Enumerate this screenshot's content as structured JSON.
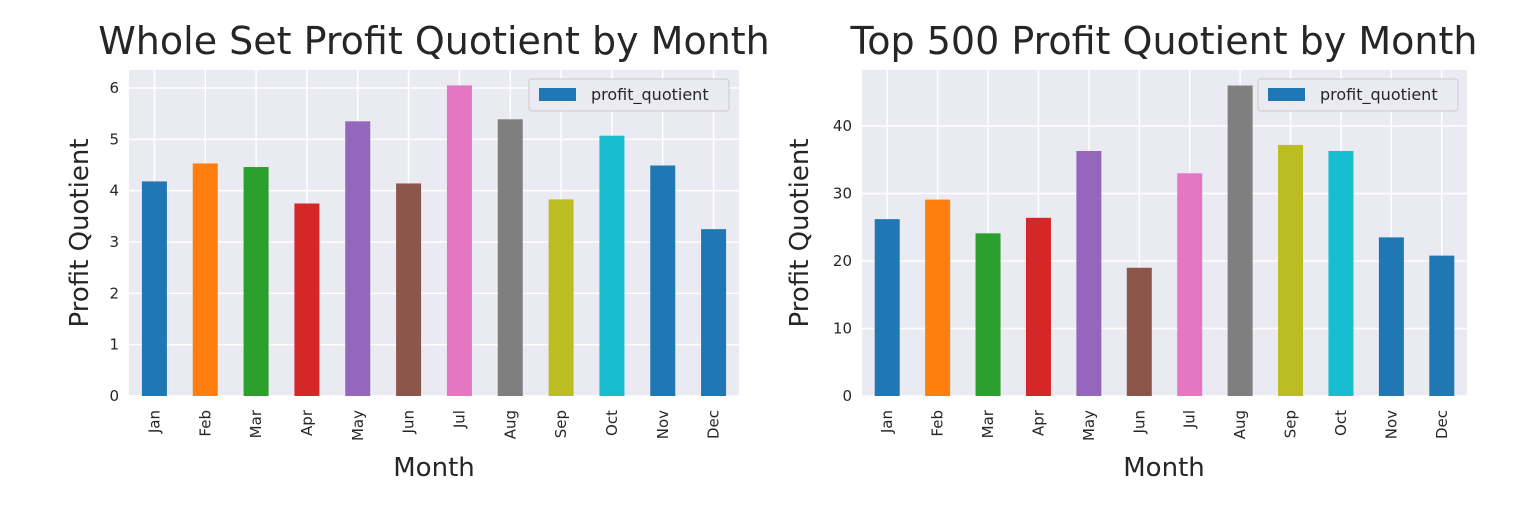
{
  "chart_data": [
    {
      "type": "bar",
      "title": "Whole Set Profit Quotient by Month",
      "xlabel": "Month",
      "ylabel": "Profit Quotient",
      "categories": [
        "Jan",
        "Feb",
        "Mar",
        "Apr",
        "May",
        "Jun",
        "Jul",
        "Aug",
        "Sep",
        "Oct",
        "Nov",
        "Dec"
      ],
      "series": [
        {
          "name": "profit_quotient",
          "values": [
            4.18,
            4.53,
            4.46,
            3.75,
            5.35,
            4.14,
            6.05,
            5.39,
            3.83,
            5.07,
            4.49,
            3.25
          ]
        }
      ],
      "bar_colors": [
        "#1f77b4",
        "#ff7f0e",
        "#2ca02c",
        "#d62728",
        "#9467bd",
        "#8c564b",
        "#e377c2",
        "#7f7f7f",
        "#bcbd22",
        "#17becf",
        "#1f77b4",
        "#1f77b4"
      ],
      "ylim": [
        0,
        6.35
      ],
      "yticks": [
        0,
        1,
        2,
        3,
        4,
        5,
        6
      ],
      "grid": true,
      "legend_position": "top-right"
    },
    {
      "type": "bar",
      "title": "Top 500 Profit Quotient by Month",
      "xlabel": "Month",
      "ylabel": "Profit Quotient",
      "categories": [
        "Jan",
        "Feb",
        "Mar",
        "Apr",
        "May",
        "Jun",
        "Jul",
        "Aug",
        "Sep",
        "Oct",
        "Nov",
        "Dec"
      ],
      "series": [
        {
          "name": "profit_quotient",
          "values": [
            26.2,
            29.1,
            24.1,
            26.4,
            36.3,
            19.0,
            33.0,
            46.0,
            37.2,
            36.3,
            23.5,
            20.8
          ]
        }
      ],
      "bar_colors": [
        "#1f77b4",
        "#ff7f0e",
        "#2ca02c",
        "#d62728",
        "#9467bd",
        "#8c564b",
        "#e377c2",
        "#7f7f7f",
        "#bcbd22",
        "#17becf",
        "#1f77b4",
        "#1f77b4"
      ],
      "ylim": [
        0,
        48.3
      ],
      "yticks": [
        0,
        10,
        20,
        30,
        40
      ],
      "grid": true,
      "legend_position": "top-right"
    }
  ]
}
